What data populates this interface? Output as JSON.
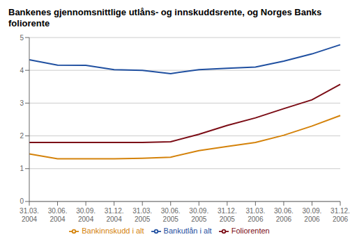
{
  "chart_data": {
    "type": "line",
    "title": "Bankenes gjennomsnittlige utlåns- og innskuddsrente, og Norges Banks\nfoliorente",
    "categories": [
      "31.03.\n2004",
      "30.06.\n2004",
      "30.09.\n2004",
      "31.12.\n2004",
      "31.03.\n2005",
      "30.06.\n2005",
      "30.09.\n2005",
      "31.12.\n2005",
      "31.03.\n2006",
      "30.06.\n2006",
      "30.09.\n2006",
      "31.12.\n2006"
    ],
    "series": [
      {
        "name": "Bankutlån i alt",
        "color": "#1f4fa0",
        "values": [
          4.32,
          4.16,
          4.15,
          4.02,
          4.0,
          3.9,
          4.02,
          4.06,
          4.1,
          4.28,
          4.5,
          4.78
        ]
      },
      {
        "name": "Foliorenten",
        "color": "#7b0c15",
        "values": [
          1.8,
          1.8,
          1.8,
          1.8,
          1.8,
          1.82,
          2.05,
          2.32,
          2.55,
          2.83,
          3.1,
          3.57
        ]
      },
      {
        "name": "Bankinnskudd i alt",
        "color": "#d4820a",
        "values": [
          1.45,
          1.3,
          1.3,
          1.3,
          1.32,
          1.35,
          1.55,
          1.68,
          1.8,
          2.02,
          2.3,
          2.62
        ]
      }
    ],
    "ylim": [
      0,
      5
    ],
    "yticks": [
      0,
      1,
      2,
      3,
      4,
      5
    ],
    "grid": true,
    "legend": "bottom"
  }
}
